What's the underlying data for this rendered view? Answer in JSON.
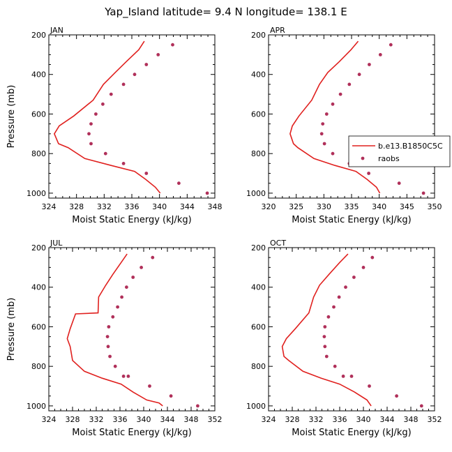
{
  "figure": {
    "title": "Yap_Island  latitude= 9.4 N longitude= 138.1 E"
  },
  "colors": {
    "model": "#e0201e",
    "obs": "#b0305a",
    "axis": "#000000"
  },
  "legend": {
    "model_label": "b.e13.B1850C5C",
    "obs_label": "raobs",
    "placement": "right of APR panel"
  },
  "chart_data": [
    {
      "type": "line",
      "panel": "JAN",
      "title": "JAN",
      "xlabel": "Moist Static Energy (kJ/kg)",
      "ylabel": "Pressure (mb)",
      "xlim": [
        324,
        348
      ],
      "ylim": [
        1025,
        200
      ],
      "xticks": [
        324,
        328,
        332,
        336,
        340,
        344,
        348
      ],
      "yticks": [
        200,
        400,
        600,
        800,
        1000
      ],
      "series": [
        {
          "name": "b.e13.B1850C5C",
          "kind": "line",
          "x": [
            337.8,
            337.0,
            335.2,
            333.6,
            331.9,
            330.4,
            327.6,
            325.5,
            324.8,
            325.4,
            326.8,
            329.2,
            333.0,
            336.4,
            338.0,
            339.4,
            340.1
          ],
          "y": [
            232,
            275,
            335,
            390,
            450,
            530,
            610,
            660,
            700,
            750,
            770,
            825,
            860,
            890,
            930,
            970,
            1000
          ]
        },
        {
          "name": "raobs",
          "kind": "scatter",
          "x": [
            341.9,
            339.8,
            338.1,
            336.4,
            334.8,
            333.0,
            331.8,
            330.8,
            330.1,
            329.8,
            330.1,
            332.2,
            334.8,
            338.1,
            342.8,
            346.9
          ],
          "y": [
            250,
            300,
            350,
            400,
            450,
            500,
            550,
            600,
            650,
            700,
            750,
            800,
            850,
            900,
            950,
            1000
          ]
        }
      ]
    },
    {
      "type": "line",
      "panel": "APR",
      "title": "APR",
      "xlabel": "Moist Static Energy (kJ/kg)",
      "ylabel": "",
      "xlim": [
        320,
        350
      ],
      "ylim": [
        1025,
        200
      ],
      "xticks": [
        320,
        325,
        330,
        335,
        340,
        345,
        350
      ],
      "yticks": [
        200,
        400,
        600,
        800,
        1000
      ],
      "series": [
        {
          "name": "b.e13.B1850C5C",
          "kind": "line",
          "x": [
            336.2,
            334.9,
            332.8,
            330.7,
            329.2,
            327.8,
            325.5,
            324.3,
            323.9,
            324.5,
            325.3,
            328.2,
            332.0,
            335.8,
            337.8,
            339.5,
            340.1
          ],
          "y": [
            232,
            275,
            335,
            390,
            450,
            530,
            610,
            660,
            700,
            750,
            770,
            825,
            860,
            890,
            930,
            970,
            1000
          ]
        },
        {
          "name": "raobs",
          "kind": "scatter",
          "x": [
            342.1,
            340.2,
            338.2,
            336.4,
            334.6,
            333.0,
            331.6,
            330.5,
            329.8,
            329.6,
            330.1,
            331.6,
            334.6,
            338.1,
            343.6,
            348.0
          ],
          "y": [
            250,
            300,
            350,
            400,
            450,
            500,
            550,
            600,
            650,
            700,
            750,
            800,
            850,
            900,
            950,
            1000
          ]
        }
      ]
    },
    {
      "type": "line",
      "panel": "JUL",
      "title": "JUL",
      "xlabel": "Moist Static Energy (kJ/kg)",
      "ylabel": "Pressure (mb)",
      "xlim": [
        324,
        352
      ],
      "ylim": [
        1025,
        200
      ],
      "xticks": [
        324,
        328,
        332,
        336,
        340,
        344,
        348,
        352
      ],
      "yticks": [
        200,
        400,
        600,
        800,
        1000
      ],
      "series": [
        {
          "name": "b.e13.B1850C5C",
          "kind": "line",
          "x": [
            337.2,
            336.2,
            334.8,
            333.6,
            332.4,
            332.3,
            328.5,
            327.6,
            327.1,
            327.6,
            328.0,
            330.0,
            333.0,
            336.2,
            338.2,
            340.5,
            342.6,
            343.2
          ],
          "y": [
            232,
            275,
            335,
            390,
            450,
            530,
            535,
            610,
            660,
            700,
            770,
            825,
            860,
            890,
            930,
            970,
            985,
            1000
          ]
        },
        {
          "name": "raobs",
          "kind": "scatter",
          "x": [
            341.5,
            339.6,
            338.2,
            337.1,
            336.3,
            335.6,
            334.8,
            334.1,
            333.9,
            334.0,
            334.3,
            335.2,
            336.6,
            337.4,
            341.0,
            344.6,
            349.1
          ],
          "y": [
            250,
            300,
            350,
            400,
            450,
            500,
            550,
            600,
            650,
            700,
            750,
            800,
            850,
            850,
            900,
            950,
            1000
          ]
        }
      ]
    },
    {
      "type": "line",
      "panel": "OCT",
      "title": "OCT",
      "xlabel": "Moist Static Energy (kJ/kg)",
      "ylabel": "",
      "xlim": [
        324,
        352
      ],
      "ylim": [
        1025,
        200
      ],
      "xticks": [
        324,
        328,
        332,
        336,
        340,
        344,
        348,
        352
      ],
      "yticks": [
        200,
        400,
        600,
        800,
        1000
      ],
      "series": [
        {
          "name": "b.e13.B1850C5C",
          "kind": "line",
          "x": [
            337.4,
            336.0,
            334.2,
            332.6,
            331.6,
            330.8,
            328.5,
            327.0,
            326.3,
            326.6,
            327.4,
            329.8,
            332.9,
            336.0,
            338.5,
            340.6,
            341.3
          ],
          "y": [
            232,
            275,
            335,
            390,
            450,
            530,
            610,
            660,
            700,
            750,
            770,
            825,
            860,
            890,
            930,
            970,
            1000
          ]
        },
        {
          "name": "raobs",
          "kind": "scatter",
          "x": [
            341.5,
            340.0,
            338.4,
            337.0,
            335.9,
            335.0,
            334.1,
            333.5,
            333.4,
            333.5,
            333.8,
            335.2,
            336.6,
            338.0,
            341.0,
            345.6,
            349.8
          ],
          "y": [
            250,
            300,
            350,
            400,
            450,
            500,
            550,
            600,
            650,
            700,
            750,
            800,
            850,
            850,
            900,
            950,
            1000
          ]
        }
      ]
    }
  ]
}
